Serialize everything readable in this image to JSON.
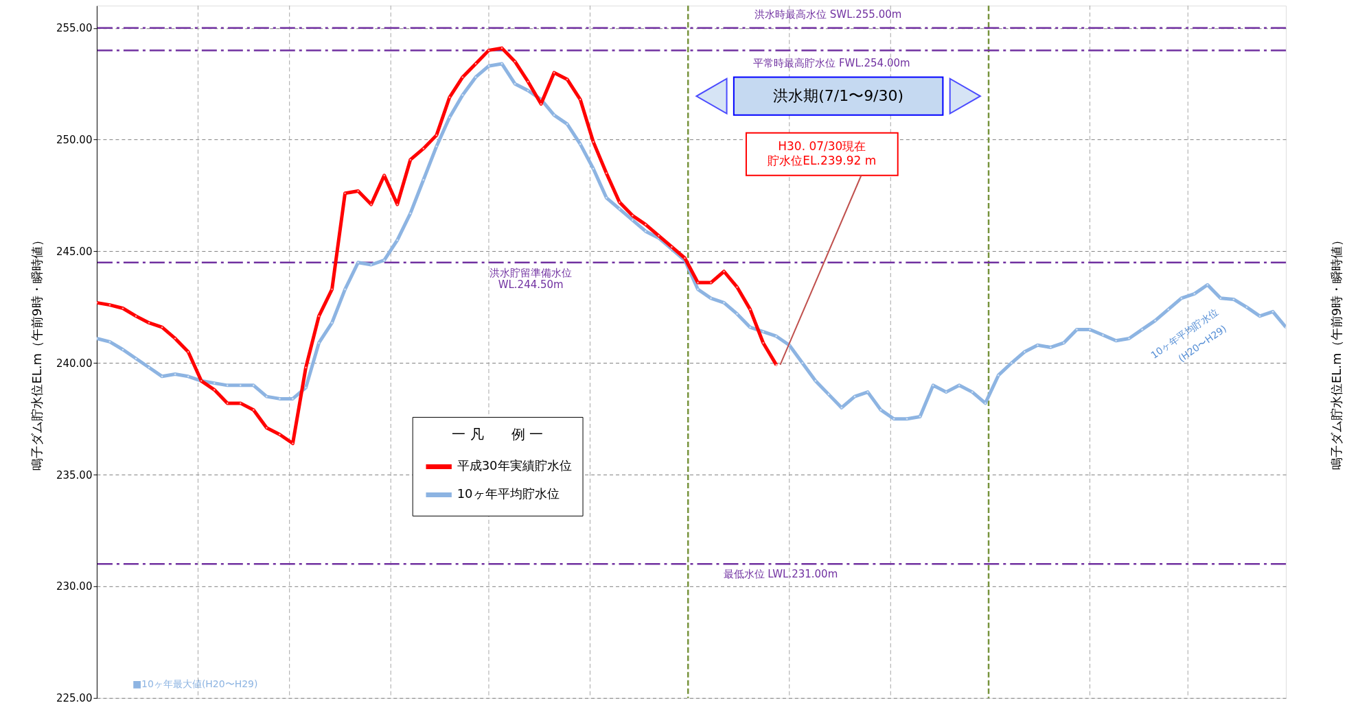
{
  "chart_data": {
    "type": "line",
    "ylabel": "鳴子ダム貯水位EL.m（午前9時・瞬時値）",
    "y2label": "鳴子ダム貯水位EL.m（午前9時・瞬時値）",
    "legend_title": "一 凡　　例 一",
    "legend": "bottom left",
    "marker": "circle",
    "line_style": "solid",
    "grid": true,
    "tick_labels": "y",
    "categories": [
      null,
      null,
      null,
      null,
      null,
      null,
      null,
      null,
      null,
      null,
      null,
      null,
      null,
      null,
      null,
      null,
      null,
      null,
      null,
      null,
      null,
      null,
      null,
      null,
      null,
      null,
      null,
      null,
      null,
      null,
      null,
      null,
      null,
      null,
      null,
      null,
      null,
      null,
      null,
      null,
      null,
      null,
      null,
      null,
      null,
      null,
      null,
      null,
      null,
      null,
      null,
      null,
      null,
      null,
      null,
      null,
      null,
      null,
      null,
      null,
      null,
      null,
      null,
      null,
      null,
      null,
      null,
      null,
      null,
      null,
      null,
      null,
      null,
      null,
      null,
      null,
      null,
      null,
      null,
      null,
      null,
      null,
      null,
      null,
      null,
      null,
      null,
      null,
      null,
      null,
      null,
      null
    ],
    "ylim": [
      225,
      256
    ],
    "yticks": [
      {
        "value": 225,
        "label": "225.00"
      },
      {
        "value": 230,
        "label": "230.00"
      },
      {
        "value": 235,
        "label": "235.00"
      },
      {
        "value": 240,
        "label": "240.00"
      },
      {
        "value": 245,
        "label": "245.00"
      },
      {
        "value": 250,
        "label": "250.00"
      },
      {
        "value": 255,
        "label": "255.00"
      }
    ],
    "series": [
      {
        "name": "平成30年実績貯水位",
        "color": "#ff0000",
        "values": [
          242.7,
          242.6,
          242.45,
          242.1,
          241.8,
          241.6,
          241.1,
          240.5,
          239.2,
          238.8,
          238.2,
          238.2,
          237.9,
          237.1,
          236.8,
          236.4,
          239.8,
          242.1,
          243.3,
          247.6,
          247.7,
          247.1,
          248.4,
          247.1,
          249.1,
          249.6,
          250.2,
          251.9,
          252.8,
          253.4,
          254.0,
          254.1,
          253.5,
          252.6,
          251.6,
          253.0,
          252.7,
          251.8,
          249.9,
          248.5,
          247.2,
          246.6,
          246.2,
          245.7,
          245.2,
          244.7,
          243.6,
          243.6,
          244.1,
          243.4,
          242.4,
          240.9,
          239.92,
          null,
          null,
          null,
          null,
          null,
          null,
          null,
          null,
          null,
          null,
          null,
          null,
          null,
          null,
          null,
          null,
          null,
          null,
          null,
          null,
          null,
          null,
          null,
          null,
          null,
          null,
          null,
          null,
          null,
          null,
          null,
          null,
          null,
          null,
          null,
          null,
          null,
          null,
          null
        ]
      },
      {
        "name": "10ヶ年平均貯水位",
        "color": "#8db4e2",
        "values": [
          241.1,
          240.95,
          240.6,
          240.2,
          239.8,
          239.4,
          239.5,
          239.4,
          239.2,
          239.1,
          239.0,
          239.0,
          239.0,
          238.5,
          238.4,
          238.4,
          238.9,
          240.9,
          241.8,
          243.3,
          244.5,
          244.4,
          244.6,
          245.5,
          246.7,
          248.2,
          249.7,
          251.0,
          252.0,
          252.8,
          253.3,
          253.4,
          252.5,
          252.2,
          251.8,
          251.1,
          250.7,
          249.8,
          248.7,
          247.4,
          246.9,
          246.4,
          245.9,
          245.6,
          245.1,
          244.6,
          243.3,
          242.9,
          242.7,
          242.2,
          241.6,
          241.4,
          241.2,
          240.8,
          240.0,
          239.2,
          238.6,
          238.0,
          238.5,
          238.7,
          237.9,
          237.5,
          237.5,
          237.6,
          239.0,
          238.7,
          239.0,
          238.7,
          238.2,
          239.45,
          240.0,
          240.5,
          240.8,
          240.7,
          240.9,
          241.5,
          241.5,
          241.25,
          241.0,
          241.1,
          241.5,
          241.9,
          242.4,
          242.9,
          243.1,
          243.5,
          242.9,
          242.85,
          242.5,
          242.1,
          242.3,
          241.6
        ]
      }
    ],
    "ref_lines": [
      {
        "axis": "y",
        "value": 255,
        "label": "洪水時最高水位 SWL.255.00m",
        "color": "#7030a0",
        "line_style": "dashdot"
      },
      {
        "axis": "y",
        "value": 254,
        "label": "平常時最高貯水位 FWL.254.00m",
        "color": "#7030a0",
        "line_style": "dashdot"
      },
      {
        "axis": "y",
        "value": 244.5,
        "label": "洪水貯留準備水位\nWL.244.50m",
        "color": "#7030a0",
        "line_style": "dashdot"
      },
      {
        "axis": "y",
        "value": 231,
        "label": "最低水位 LWL.231.00m",
        "color": "#7030a0",
        "line_style": "dashdot"
      }
    ],
    "annotations": [
      "洪水期(7/1〜9/30)",
      "H30. 07/30現在",
      "貯水位EL.239.92 m",
      "10ヶ年平均貯水位",
      "(H20〜H29)",
      "■10ヶ年最大値(H20〜H29)"
    ]
  }
}
